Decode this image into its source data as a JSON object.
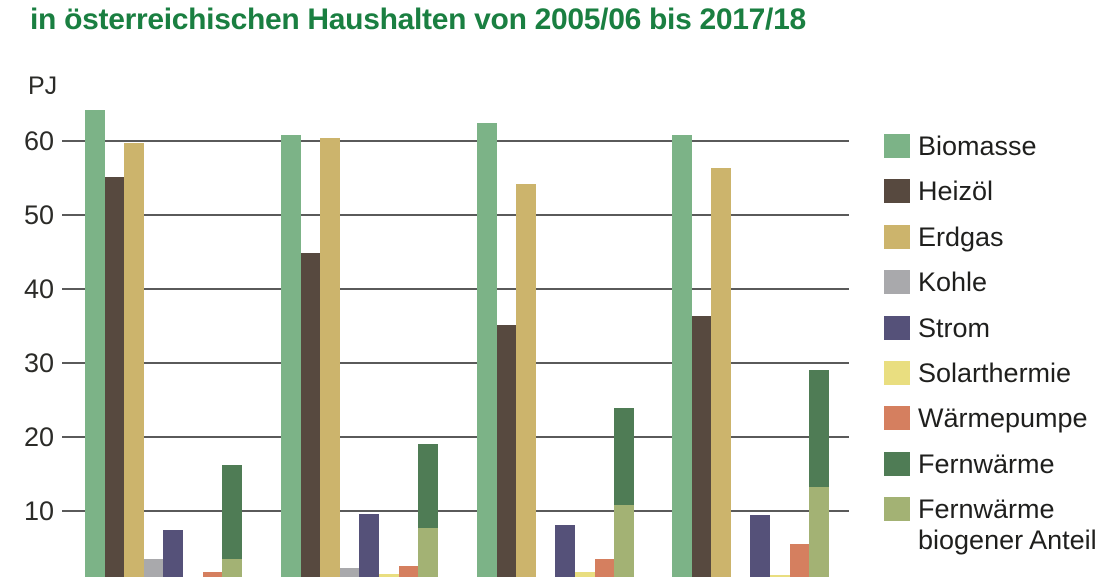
{
  "title": "in österreichischen Haushalten von 2005/06 bis 2017/18",
  "title_color": "#1a7f41",
  "axis": {
    "unit_label": "PJ",
    "yticks": [
      60,
      50,
      40,
      30,
      20,
      10
    ]
  },
  "legend": {
    "items": [
      {
        "id": "biomasse",
        "label": "Biomasse",
        "color": "#7cb387"
      },
      {
        "id": "heizoel",
        "label": "Heizöl",
        "color": "#57493f"
      },
      {
        "id": "erdgas",
        "label": "Erdgas",
        "color": "#ccb46c"
      },
      {
        "id": "kohle",
        "label": "Kohle",
        "color": "#a9a9ac"
      },
      {
        "id": "strom",
        "label": "Strom",
        "color": "#555179"
      },
      {
        "id": "solarthermie",
        "label": "Solarthermie",
        "color": "#e9de80"
      },
      {
        "id": "waermepumpe",
        "label": "Wärmepumpe",
        "color": "#d57f5f"
      },
      {
        "id": "fernwaerme",
        "label": "Fernwärme",
        "color": "#4f7c55"
      },
      {
        "id": "fernwaerme-biogener-anteil",
        "label": "Fernwärme\nbiogener Anteil",
        "color": "#a3b274"
      }
    ]
  },
  "chart_data": {
    "type": "bar",
    "title": "in österreichischen Haushalten von 2005/06 bis 2017/18",
    "xlabel": "",
    "ylabel": "PJ",
    "ylim": [
      0,
      65
    ],
    "grid": "horizontal",
    "legend_position": "right",
    "categories": [
      "",
      "",
      "",
      ""
    ],
    "series": [
      {
        "id": "biomasse",
        "name": "Biomasse",
        "color": "#7cb387",
        "values": [
          64.2,
          60.8,
          62.4,
          60.8
        ]
      },
      {
        "id": "heizoel",
        "name": "Heizöl",
        "color": "#57493f",
        "values": [
          55.2,
          44.9,
          35.2,
          36.3
        ]
      },
      {
        "id": "erdgas",
        "name": "Erdgas",
        "color": "#ccb46c",
        "values": [
          59.7,
          60.4,
          54.2,
          56.3
        ]
      },
      {
        "id": "kohle",
        "name": "Kohle",
        "color": "#a9a9ac",
        "values": [
          3.5,
          2.3,
          1.0,
          0.9
        ]
      },
      {
        "id": "strom",
        "name": "Strom",
        "color": "#555179",
        "values": [
          7.5,
          9.6,
          8.1,
          9.4
        ]
      },
      {
        "id": "solarthermie",
        "name": "Solarthermie",
        "color": "#e9de80",
        "values": [
          1.0,
          1.5,
          1.7,
          1.4
        ]
      },
      {
        "id": "waermepumpe",
        "name": "Wärmepumpe",
        "color": "#d57f5f",
        "values": [
          1.7,
          2.6,
          3.5,
          5.5
        ]
      },
      {
        "id": "fernwaerme",
        "name": "Fernwärme",
        "color": "#4f7c55",
        "values": [
          16.2,
          19.0,
          23.9,
          29.1
        ],
        "stacked_overlay": {
          "id": "fernwaerme-biogener-anteil",
          "name": "Fernwärme biogener Anteil",
          "color": "#a3b274",
          "values": [
            3.5,
            7.7,
            10.8,
            13.2
          ]
        }
      }
    ]
  }
}
